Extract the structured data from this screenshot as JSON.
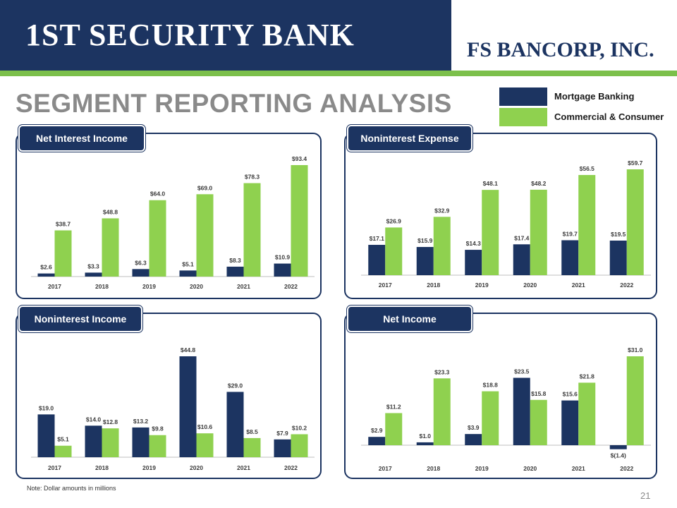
{
  "header": {
    "bank_logo_text": "1ST SECURITY BANK",
    "bancorp_logo_text": "FS BANCORP, INC.",
    "title": "SEGMENT REPORTING ANALYSIS"
  },
  "legend": [
    {
      "label": "Mortgage Banking",
      "color": "#1c3461"
    },
    {
      "label": "Commercial & Consumer",
      "color": "#8fd14f"
    }
  ],
  "colors": {
    "navy": "#1c3461",
    "green": "#8fd14f",
    "label": "#3b3b3b",
    "axis": "#bfbfbf"
  },
  "chart_data": [
    {
      "type": "bar",
      "title": "Net Interest Income",
      "categories": [
        "2017",
        "2018",
        "2019",
        "2020",
        "2021",
        "2022"
      ],
      "series": [
        {
          "name": "Mortgage Banking",
          "values": [
            2.6,
            3.3,
            6.3,
            5.1,
            8.3,
            10.9
          ],
          "labels": [
            "$2.6",
            "$3.3",
            "$6.3",
            "$5.1",
            "$8.3",
            "$10.9"
          ]
        },
        {
          "name": "Commercial & Consumer",
          "values": [
            38.7,
            48.8,
            64.0,
            69.0,
            78.3,
            93.4
          ],
          "labels": [
            "$38.7",
            "$48.8",
            "$64.0",
            "$69.0",
            "$78.3",
            "$93.4"
          ]
        }
      ],
      "ylim": [
        0,
        93.4
      ]
    },
    {
      "type": "bar",
      "title": "Noninterest Expense",
      "categories": [
        "2017",
        "2018",
        "2019",
        "2020",
        "2021",
        "2022"
      ],
      "series": [
        {
          "name": "Mortgage Banking",
          "values": [
            17.1,
            15.9,
            14.3,
            17.4,
            19.7,
            19.5
          ],
          "labels": [
            "$17.1",
            "$15.9",
            "$14.3",
            "$17.4",
            "$19.7",
            "$19.5"
          ]
        },
        {
          "name": "Commercial & Consumer",
          "values": [
            26.9,
            32.9,
            48.1,
            48.2,
            56.5,
            59.7
          ],
          "labels": [
            "$26.9",
            "$32.9",
            "$48.1",
            "$48.2",
            "$56.5",
            "$59.7"
          ]
        }
      ],
      "ylim": [
        0,
        59.7
      ]
    },
    {
      "type": "bar",
      "title": "Noninterest Income",
      "categories": [
        "2017",
        "2018",
        "2019",
        "2020",
        "2021",
        "2022"
      ],
      "series": [
        {
          "name": "Mortgage Banking",
          "values": [
            19.0,
            14.0,
            13.2,
            44.8,
            29.0,
            7.9
          ],
          "labels": [
            "$19.0",
            "$14.0",
            "$13.2",
            "$44.8",
            "$29.0",
            "$7.9"
          ]
        },
        {
          "name": "Commercial & Consumer",
          "values": [
            5.1,
            12.8,
            9.8,
            10.6,
            8.5,
            10.2
          ],
          "labels": [
            "$5.1",
            "$12.8",
            "$9.8",
            "$10.6",
            "$8.5",
            "$10.2"
          ]
        }
      ],
      "ylim": [
        0,
        44.8
      ]
    },
    {
      "type": "bar",
      "title": "Net Income",
      "categories": [
        "2017",
        "2018",
        "2019",
        "2020",
        "2021",
        "2022"
      ],
      "series": [
        {
          "name": "Mortgage Banking",
          "values": [
            2.9,
            1.0,
            3.9,
            23.5,
            15.6,
            -1.4
          ],
          "labels": [
            "$2.9",
            "$1.0",
            "$3.9",
            "$23.5",
            "$15.6",
            "$(1.4)"
          ]
        },
        {
          "name": "Commercial & Consumer",
          "values": [
            11.2,
            23.3,
            18.8,
            15.8,
            21.8,
            31.0
          ],
          "labels": [
            "$11.2",
            "$23.3",
            "$18.8",
            "$15.8",
            "$21.8",
            "$31.0"
          ]
        }
      ],
      "ylim": [
        -1.4,
        31.0
      ]
    }
  ],
  "footer": {
    "note": "Note: Dollar amounts in millions",
    "page_number": "21"
  }
}
